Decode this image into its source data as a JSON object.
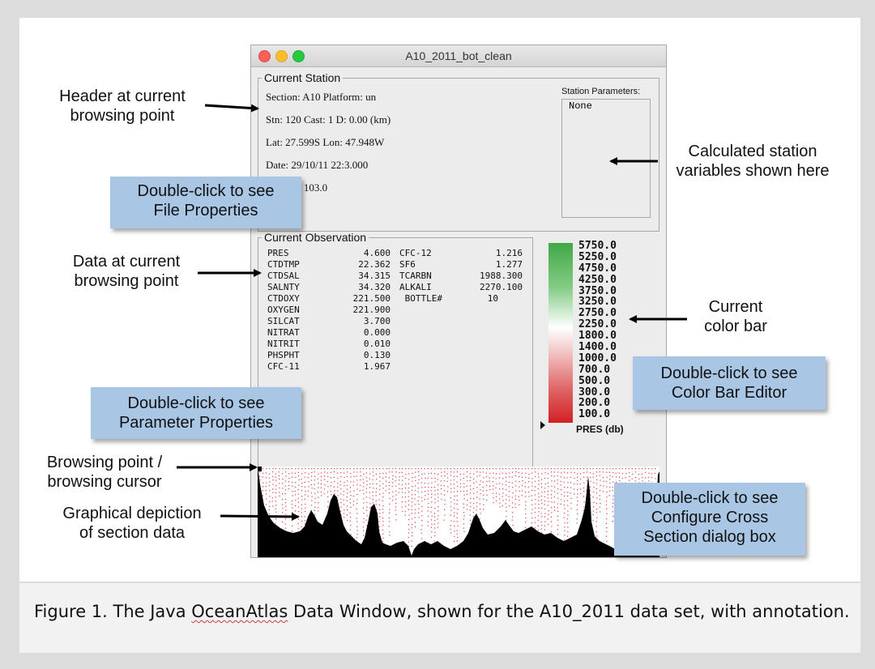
{
  "window": {
    "title": "A10_2011_bot_clean",
    "current_station": {
      "legend": "Current Station",
      "lines": [
        "Section: A10 Platform: un",
        "Stn: 120 Cast: 1  D: 0.00 (km)",
        "Lat:  27.599S Lon:  47.948W",
        "Date: 29/10/11  22:3.000",
        ": 103.0"
      ],
      "station_parameters_label": "Station Parameters:",
      "station_parameters_value": "None"
    },
    "current_observation": {
      "legend": "Current Observation",
      "left": [
        {
          "name": "PRES",
          "value": "4.600"
        },
        {
          "name": "CTDTMP",
          "value": "22.362"
        },
        {
          "name": "CTDSAL",
          "value": "34.315"
        },
        {
          "name": "SALNTY",
          "value": "34.320"
        },
        {
          "name": "CTDOXY",
          "value": "221.500"
        },
        {
          "name": "OXYGEN",
          "value": "221.900"
        },
        {
          "name": "SILCAT",
          "value": "3.700"
        },
        {
          "name": "NITRAT",
          "value": "0.000"
        },
        {
          "name": "NITRIT",
          "value": "0.010"
        },
        {
          "name": "PHSPHT",
          "value": "0.130"
        },
        {
          "name": "CFC-11",
          "value": "1.967"
        }
      ],
      "right": [
        {
          "name": "CFC-12",
          "value": "1.216"
        },
        {
          "name": "SF6",
          "value": "1.277"
        },
        {
          "name": "TCARBN",
          "value": "1988.300"
        },
        {
          "name": "ALKALI",
          "value": "2270.100"
        },
        {
          "name": " BOTTLE#",
          "value": "10"
        }
      ]
    },
    "color_bar": {
      "labels": [
        "5750.0",
        "5250.0",
        "4750.0",
        "4250.0",
        "3750.0",
        "3250.0",
        "2750.0",
        "2250.0",
        "1800.0",
        "1400.0",
        "1000.0",
        "700.0",
        "500.0",
        "300.0",
        "200.0",
        "100.0"
      ],
      "variable": "PRES (db)",
      "colors": {
        "top": "#41a846",
        "middle": "#ffffff",
        "bottom": "#d31f24"
      }
    }
  },
  "annotations": {
    "header": [
      "Header at current",
      "browsing point"
    ],
    "calculated": [
      "Calculated station",
      "variables shown here"
    ],
    "data": [
      "Data at current",
      "browsing point"
    ],
    "colorbar": [
      "Current",
      "color bar"
    ],
    "cursor": [
      "Browsing point /",
      "browsing cursor"
    ],
    "graphical": [
      "Graphical depiction",
      "of section data"
    ]
  },
  "callouts": {
    "file_properties": [
      "Double-click to see",
      "File Properties"
    ],
    "parameter_properties": [
      "Double-click to see",
      "Parameter Properties"
    ],
    "color_bar_editor": [
      "Double-click to see",
      "Color Bar Editor"
    ],
    "cross_section": [
      "Double-click to see",
      "Configure Cross",
      "Section dialog box"
    ]
  },
  "caption": {
    "before": "Figure 1. The Java ",
    "underlined": "OceanAtlas",
    "after": " Data Window, shown for the A10_2011 data set, with annotation."
  }
}
